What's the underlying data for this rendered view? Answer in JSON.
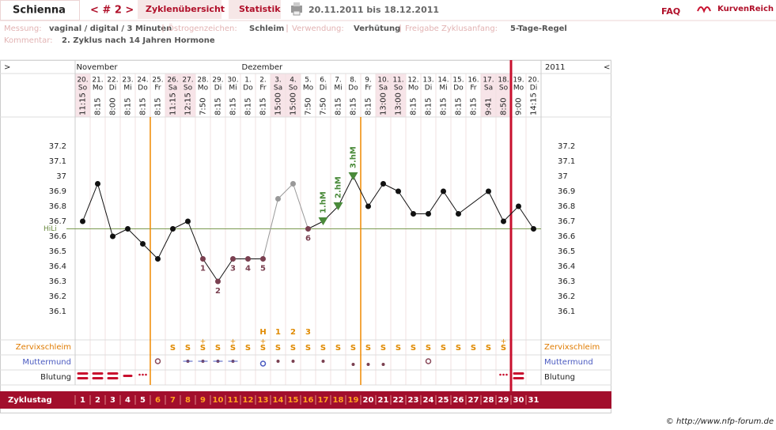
{
  "header": {
    "name": "Schienna",
    "cycle_nav": "< # 2 >",
    "tabs": [
      "Zyklenübersicht",
      "Statistik"
    ],
    "range": "20.11.2011 bis 18.12.2011",
    "faq": "FAQ",
    "brand": "KurvenReich"
  },
  "info": [
    {
      "label": "Messung:",
      "value": "vaginal / digital / 3 Minuten"
    },
    {
      "label": "Östrogenzeichen:",
      "value": "Schleim"
    },
    {
      "label": "Verwendung:",
      "value": "Verhütung"
    },
    {
      "label": "Freigabe Zyklusanfang:",
      "value": "5-Tage-Regel"
    }
  ],
  "comment": {
    "label": "Kommentar:",
    "value": "2. Zyklus nach 14 Jahren Hormone"
  },
  "chart": {
    "left_arrow": ">",
    "right_arrow": "<",
    "year": "2011",
    "months": [
      "November",
      "Dezember"
    ],
    "dates": [
      [
        "20.",
        "So",
        "11:15"
      ],
      [
        "21.",
        "Mo",
        "8:15"
      ],
      [
        "22.",
        "Di",
        "8:00"
      ],
      [
        "23.",
        "Mi",
        "8:15"
      ],
      [
        "24.",
        "Do",
        "8:15"
      ],
      [
        "25.",
        "Fr",
        "8:15"
      ],
      [
        "26.",
        "Sa",
        "11:15"
      ],
      [
        "27.",
        "So",
        "12:15"
      ],
      [
        "28.",
        "Mo",
        "7:50"
      ],
      [
        "29.",
        "Di",
        "8:15"
      ],
      [
        "30.",
        "Mi",
        "8:15"
      ],
      [
        "1.",
        "Do",
        "8:15"
      ],
      [
        "2.",
        "Fr",
        "8:15"
      ],
      [
        "3.",
        "Sa",
        "15:00"
      ],
      [
        "4.",
        "So",
        "15:00"
      ],
      [
        "5.",
        "Mo",
        "7:50"
      ],
      [
        "6.",
        "Di",
        "7:50"
      ],
      [
        "7.",
        "Mi",
        "8:15"
      ],
      [
        "8.",
        "Do",
        "8:15"
      ],
      [
        "9.",
        "Fr",
        "8:15"
      ],
      [
        "10.",
        "Sa",
        "13:00"
      ],
      [
        "11.",
        "So",
        "13:00"
      ],
      [
        "12.",
        "Mo",
        "8:15"
      ],
      [
        "13.",
        "Di",
        "8:15"
      ],
      [
        "14.",
        "Mi",
        "8:15"
      ],
      [
        "15.",
        "Do",
        "8:15"
      ],
      [
        "16.",
        "Fr",
        "8:15"
      ],
      [
        "17.",
        "Sa",
        "9:41"
      ],
      [
        "18.",
        "So",
        "8:50"
      ],
      [
        "19.",
        "Mo",
        "9:00"
      ],
      [
        "20.",
        "Di",
        "14:15"
      ]
    ],
    "temperatures": [
      36.7,
      36.95,
      36.6,
      36.65,
      36.55,
      36.45,
      36.65,
      36.7,
      36.45,
      36.3,
      36.45,
      36.45,
      36.45,
      36.85,
      36.95,
      36.65,
      36.7,
      36.8,
      37.0,
      36.8,
      36.95,
      36.9,
      36.75,
      36.75,
      36.9,
      36.75,
      null,
      36.9,
      36.7,
      36.8,
      36.65
    ],
    "point_colors": [
      "#111",
      "#111",
      "#111",
      "#111",
      "#111",
      "#111",
      "#111",
      "#111",
      "#7a4050",
      "#7a4050",
      "#7a4050",
      "#7a4050",
      "#7a4050",
      "#999",
      "#999",
      "#7a4050",
      "#4a8a3a",
      "#4a8a3a",
      "#4a8a3a",
      "#111",
      "#111",
      "#111",
      "#111",
      "#111",
      "#111",
      "#111",
      null,
      "#111",
      "#111",
      "#111",
      "#111"
    ],
    "low_labels": [
      null,
      null,
      null,
      null,
      null,
      null,
      null,
      null,
      "1",
      "2",
      "3",
      "4",
      "5",
      null,
      null,
      "6",
      null,
      null,
      null,
      null,
      null,
      null,
      null,
      null,
      null,
      null,
      null,
      null,
      null,
      null,
      null
    ],
    "high_labels": [
      null,
      null,
      null,
      null,
      null,
      null,
      null,
      null,
      null,
      null,
      null,
      null,
      null,
      null,
      null,
      null,
      "1.hM",
      "2.hM",
      "3.hM",
      null,
      null,
      null,
      null,
      null,
      null,
      null,
      null,
      null,
      null,
      null,
      null
    ],
    "ylim": [
      35.9,
      37.4
    ],
    "yticks": [
      37.2,
      37.1,
      37,
      36.9,
      36.8,
      36.7,
      36.6,
      36.5,
      36.4,
      36.3,
      36.2,
      36.1
    ],
    "hili": {
      "label": "HiLi",
      "value": 36.65
    },
    "markers": [
      {
        "after_day": 5,
        "color": "#f08a00"
      },
      {
        "after_day": 19,
        "color": "#f08a00"
      },
      {
        "after_day": 29,
        "color": "#c8102e"
      }
    ],
    "peak_labels": [
      null,
      null,
      null,
      null,
      null,
      null,
      null,
      null,
      null,
      null,
      null,
      null,
      "H",
      "1",
      "2",
      "3",
      null,
      null,
      null,
      null,
      null,
      null,
      null,
      null,
      null,
      null,
      null,
      null,
      null,
      null,
      null
    ],
    "cervix_plus": [
      null,
      null,
      null,
      null,
      null,
      null,
      null,
      null,
      "+",
      null,
      "+",
      null,
      "+",
      null,
      null,
      null,
      null,
      null,
      null,
      null,
      null,
      null,
      null,
      null,
      null,
      null,
      null,
      null,
      "+",
      null,
      null
    ],
    "cervix": [
      null,
      null,
      null,
      null,
      null,
      null,
      "S",
      "S",
      "S",
      "S",
      "S",
      "S",
      "S",
      "S",
      "S",
      "S",
      "S",
      "S",
      "S",
      "S",
      "S",
      "S",
      "S",
      "S",
      "S",
      "S",
      "S",
      "S",
      "S",
      null,
      null
    ],
    "row_labels": [
      "Zervixschleim",
      "Muttermund",
      "Blutung",
      "Zyklustag"
    ],
    "cycle_days": [
      1,
      2,
      3,
      4,
      5,
      6,
      7,
      8,
      9,
      10,
      11,
      12,
      13,
      14,
      15,
      16,
      17,
      18,
      19,
      20,
      21,
      22,
      23,
      24,
      25,
      26,
      27,
      28,
      29,
      30,
      31
    ]
  },
  "footer": "© http://www.nfp-forum.de"
}
